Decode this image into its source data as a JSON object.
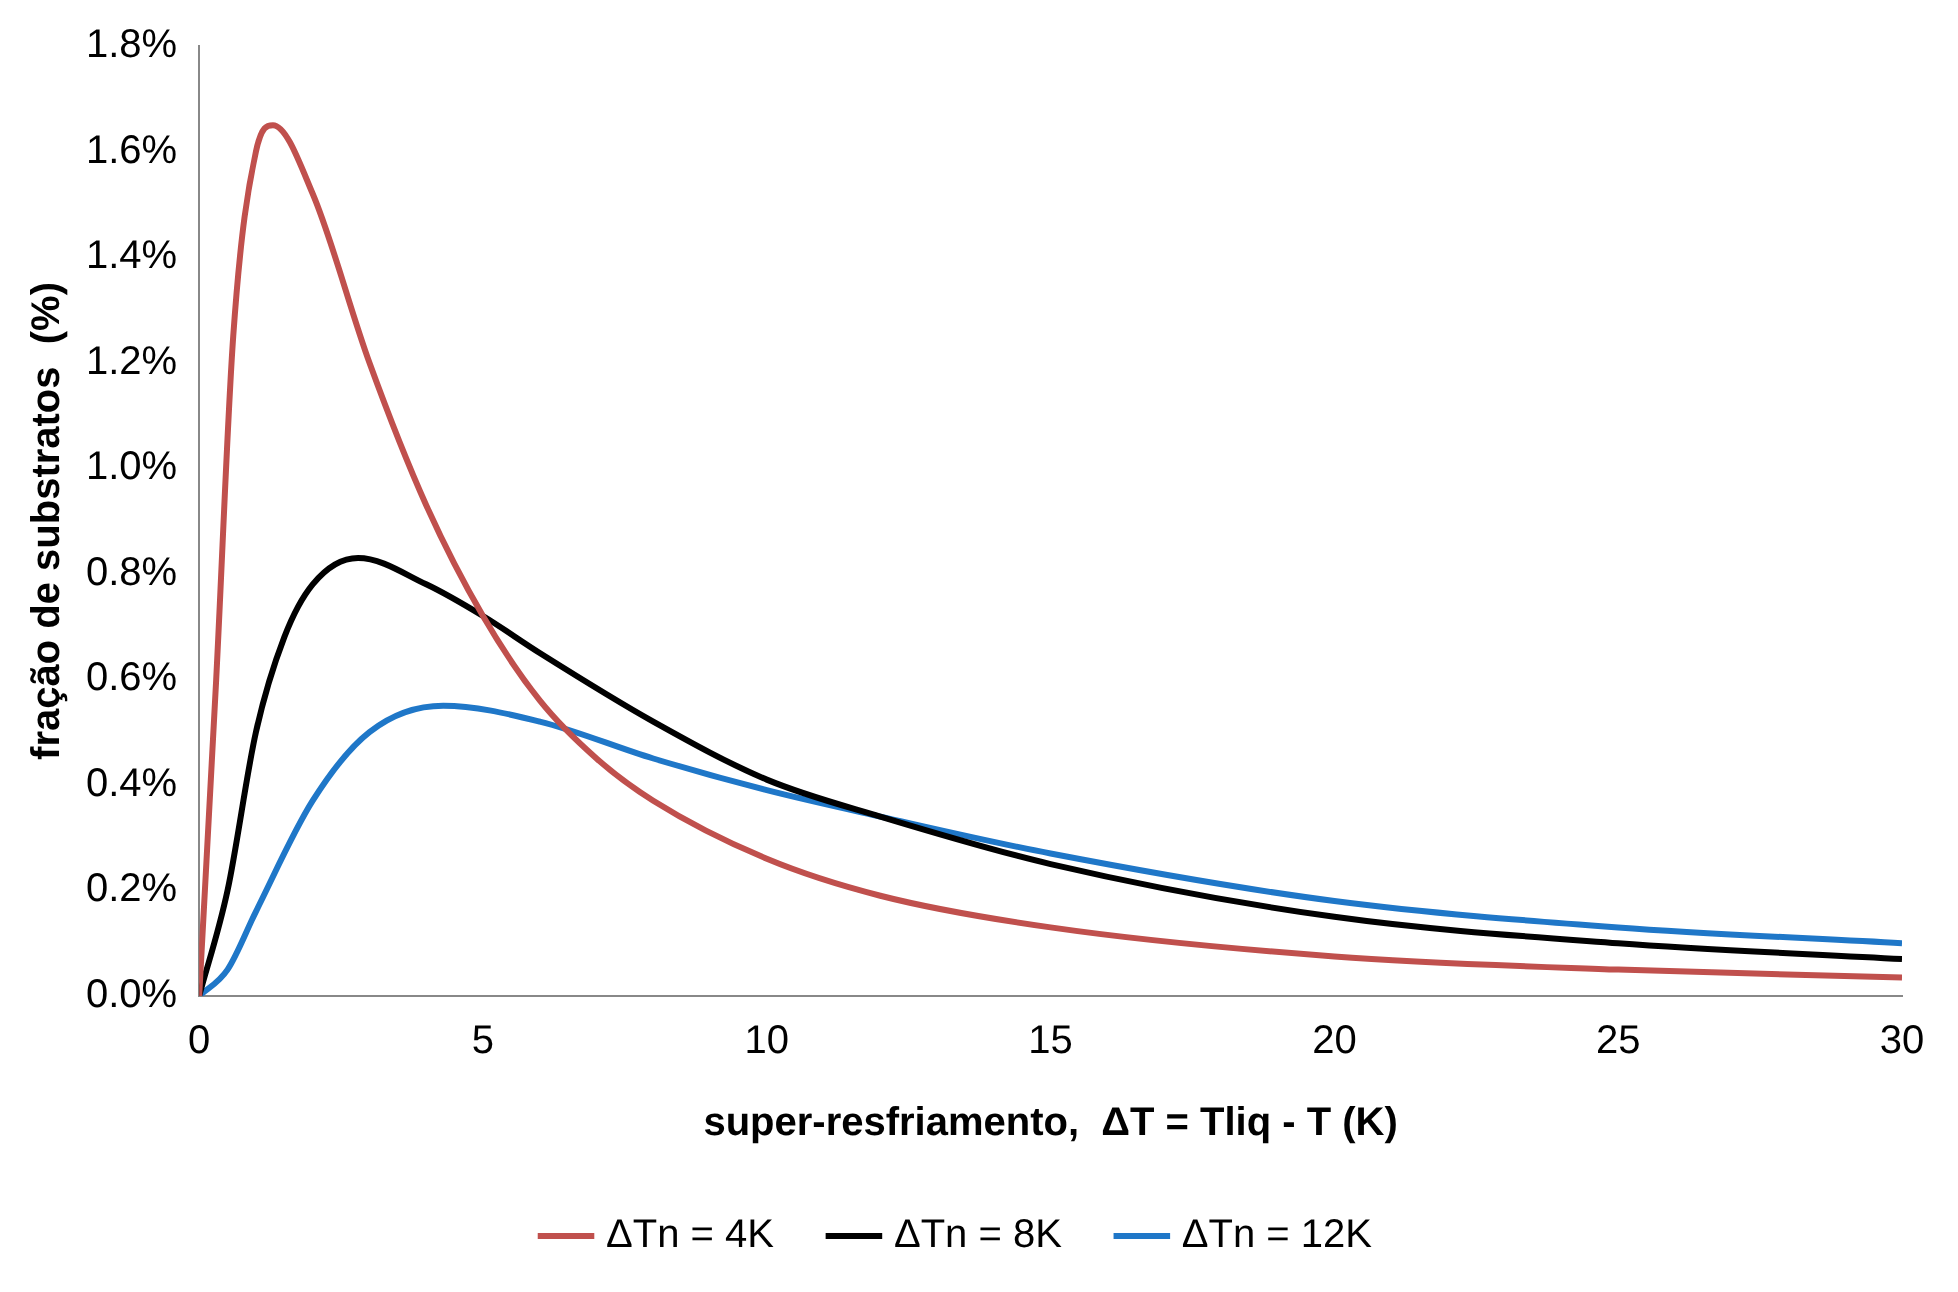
{
  "chart_data": {
    "type": "line",
    "xlabel": "super-resfriamento,  ΔT = Tliq - T (K)",
    "ylabel": "fração de substratos  (%)",
    "xlim": [
      0,
      30
    ],
    "xticks": [
      0,
      5,
      10,
      15,
      20,
      25,
      30
    ],
    "ylim": [
      0,
      1.8
    ],
    "yticks": [
      {
        "value": 0,
        "label": "0.0%"
      },
      {
        "value": 0.2,
        "label": "0.2%"
      },
      {
        "value": 0.4,
        "label": "0.4%"
      },
      {
        "value": 0.6,
        "label": "0.6%"
      },
      {
        "value": 0.8,
        "label": "0.8%"
      },
      {
        "value": 1.0,
        "label": "1.0%"
      },
      {
        "value": 1.2,
        "label": "1.2%"
      },
      {
        "value": 1.4,
        "label": "1.4%"
      },
      {
        "value": 1.6,
        "label": "1.6%"
      },
      {
        "value": 1.8,
        "label": "1.8%"
      }
    ],
    "grid": false,
    "legend": "bottom",
    "marker": "none",
    "line_style": "solid",
    "series": [
      {
        "name": "ΔTn = 4K",
        "color": "#c0504d",
        "x": [
          0,
          0.3,
          0.6,
          1,
          1.3,
          2,
          3,
          4,
          5,
          6,
          7,
          8,
          10,
          12,
          15,
          20,
          25,
          30
        ],
        "values": [
          0,
          0.6,
          1.25,
          1.6,
          1.65,
          1.52,
          1.2,
          0.93,
          0.72,
          0.56,
          0.45,
          0.37,
          0.26,
          0.19,
          0.13,
          0.075,
          0.05,
          0.035
        ]
      },
      {
        "name": "ΔTn = 8K",
        "color": "#000000",
        "x": [
          0,
          0.5,
          1,
          1.5,
          2,
          2.8,
          4,
          5,
          6,
          8,
          10,
          12,
          15,
          20,
          25,
          30
        ],
        "values": [
          0,
          0.2,
          0.5,
          0.68,
          0.78,
          0.83,
          0.78,
          0.72,
          0.65,
          0.52,
          0.41,
          0.34,
          0.25,
          0.15,
          0.1,
          0.07
        ]
      },
      {
        "name": "ΔTn = 12K",
        "color": "#1f77c8",
        "x": [
          0,
          0.5,
          1,
          2,
          3,
          4.3,
          6,
          8,
          10,
          12,
          15,
          20,
          25,
          30
        ],
        "values": [
          0,
          0.05,
          0.16,
          0.37,
          0.5,
          0.55,
          0.52,
          0.45,
          0.39,
          0.34,
          0.27,
          0.18,
          0.13,
          0.1
        ]
      }
    ]
  }
}
